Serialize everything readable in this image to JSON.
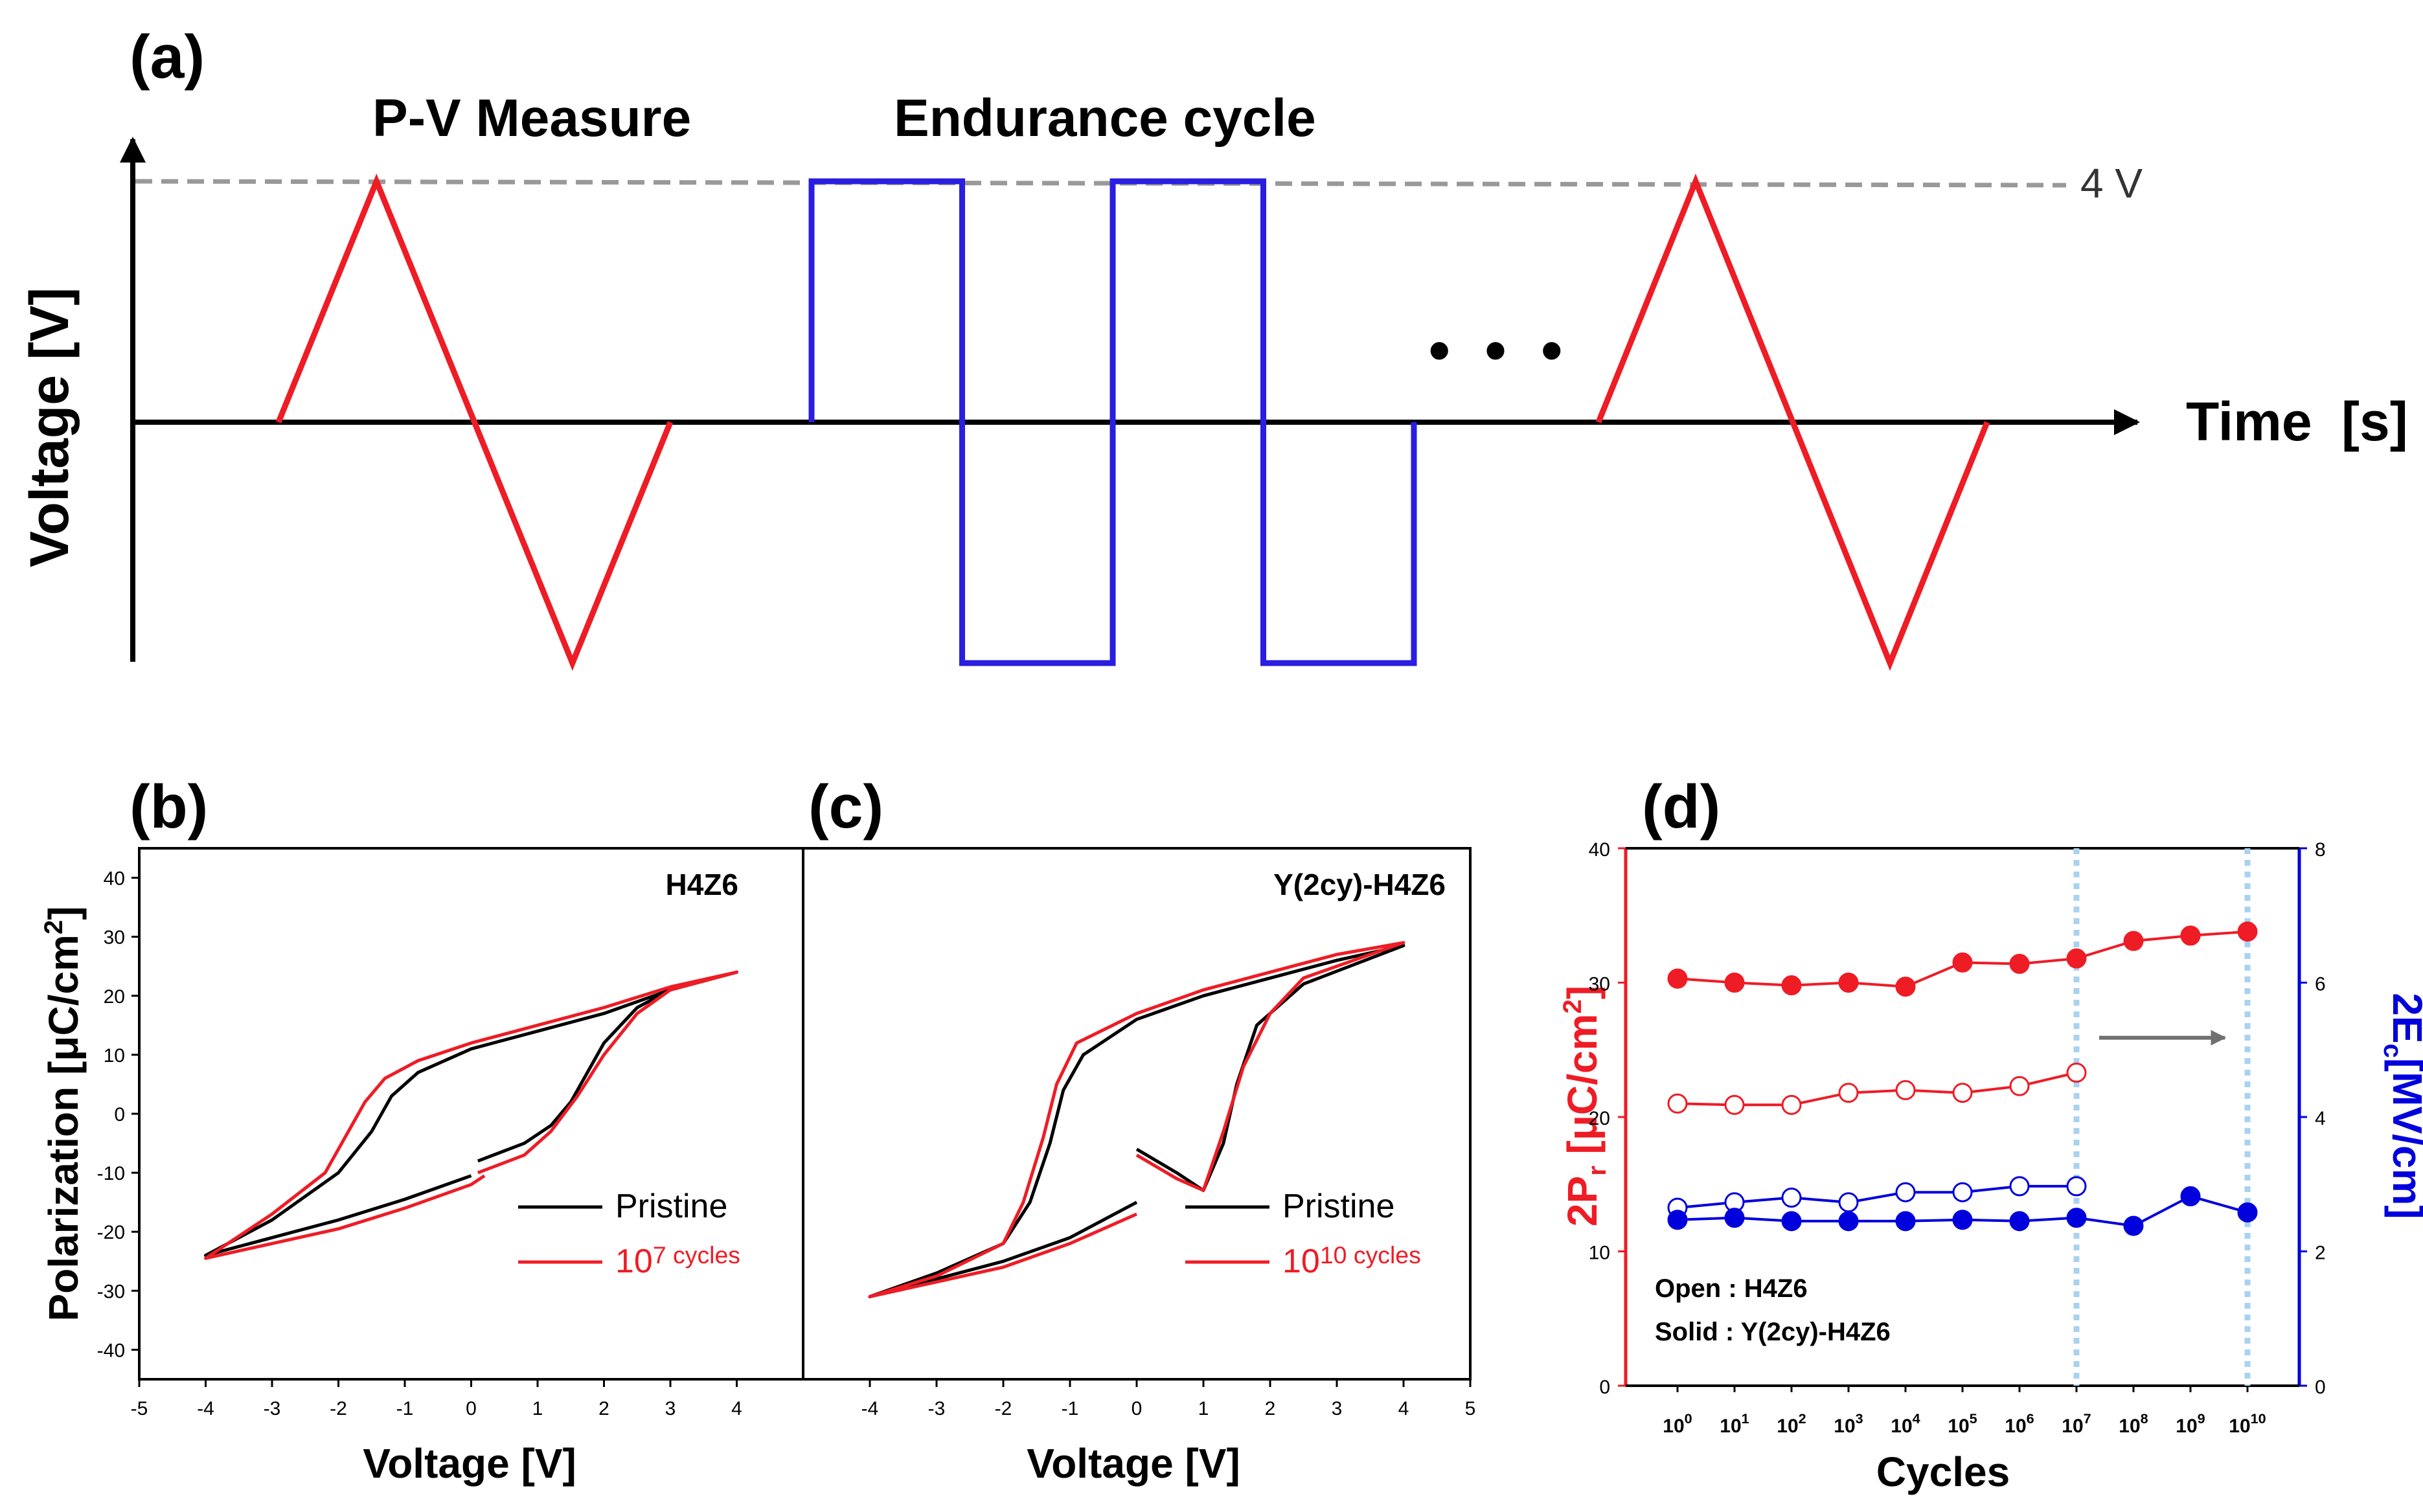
{
  "colors": {
    "red": "#ee1c25",
    "blue": "#2a1ee0",
    "dblue": "#0000dd",
    "black": "#000000",
    "gray": "#999999",
    "lightblue": "#a9d2f0"
  },
  "panel_a": {
    "label": "(a)",
    "pv_title": "P-V Measure",
    "endurance_title": "Endurance cycle",
    "ylabel": "Voltage [V]",
    "xlabel_main": "Time",
    "xlabel_unit": "[s]",
    "level_label": "4 V",
    "ellipsis": "• • •"
  },
  "panel_b": {
    "label": "(b)",
    "sample": "H4Z6"
  },
  "panel_c": {
    "label": "(c)",
    "sample": "Y(2cy)-H4Z6"
  },
  "panel_d": {
    "label": "(d)",
    "note_open": "Open : H4Z6",
    "note_solid": "Solid : Y(2cy)-H4Z6"
  },
  "chart_data": [
    {
      "id": "a",
      "type": "line",
      "title": "Voltage waveform: P-V Measure and Endurance cycle",
      "xlabel": "Time [s]",
      "ylabel": "Voltage [V]",
      "amplitude_label": "4 V",
      "series": [
        {
          "name": "P-V triangular pulse (start)",
          "color": "red",
          "t": [
            0,
            1,
            2,
            3,
            4
          ],
          "v": [
            0,
            4,
            0,
            -4,
            0
          ]
        },
        {
          "name": "Endurance bipolar square pulses",
          "color": "blue",
          "t": [
            0,
            0,
            1,
            1,
            2,
            2,
            3,
            3,
            4,
            4
          ],
          "v": [
            0,
            4,
            4,
            -4,
            -4,
            4,
            4,
            -4,
            -4,
            0
          ]
        },
        {
          "name": "P-V triangular pulse (end)",
          "color": "red",
          "t": [
            0,
            1,
            2,
            3,
            4
          ],
          "v": [
            0,
            4,
            0,
            -4,
            0
          ]
        }
      ]
    },
    {
      "id": "b",
      "type": "line",
      "title": "H4Z6",
      "xlabel": "Voltage [V]",
      "ylabel": "Polarization [μC/cm²]",
      "xlim": [
        -5,
        5
      ],
      "ylim": [
        -45,
        45
      ],
      "xticks": [
        "-5",
        "-4",
        "-3",
        "-2",
        "-1",
        "0",
        "1",
        "2",
        "3",
        "4"
      ],
      "yticks": [
        "40",
        "30",
        "20",
        "10",
        "0",
        "-10",
        "-20",
        "-30",
        "-40"
      ],
      "series": [
        {
          "name": "Pristine",
          "color": "black",
          "x": [
            0.1,
            0.8,
            1.2,
            1.5,
            2.0,
            2.5,
            3.0,
            4.0,
            3.0,
            2.0,
            1.0,
            0.0,
            -0.8,
            -1.2,
            -1.5,
            -2.0,
            -3.0,
            -4.0,
            -3.0,
            -2.0,
            -1.0,
            0.0
          ],
          "y": [
            -8,
            -5,
            -2,
            2,
            12,
            18,
            21,
            24,
            21,
            17,
            14,
            11,
            7,
            3,
            -3,
            -10,
            -18,
            -24,
            -21,
            -18,
            -14.5,
            -10.5
          ]
        },
        {
          "name": "10^7 cycles",
          "color": "red",
          "x": [
            0.1,
            0.8,
            1.2,
            1.6,
            2.0,
            2.5,
            3.0,
            4.0,
            3.0,
            2.0,
            1.0,
            0.0,
            -0.8,
            -1.3,
            -1.6,
            -1.9,
            -2.2,
            -3.0,
            -4.0,
            -3.0,
            -2.0,
            -1.0,
            0.0,
            0.2
          ],
          "y": [
            -10,
            -7,
            -3,
            3,
            10,
            17,
            21,
            24,
            21.5,
            18,
            15,
            12,
            9,
            6,
            2,
            -4,
            -10,
            -17,
            -24.5,
            -22,
            -19.5,
            -16,
            -12,
            -10.5
          ]
        }
      ],
      "legend": [
        "Pristine",
        "10^7 cycles"
      ],
      "legend_position": "bottom-right"
    },
    {
      "id": "c",
      "type": "line",
      "title": "Y(2cy)-H4Z6",
      "xlabel": "Voltage [V]",
      "xlim": [
        -5,
        5
      ],
      "ylim": [
        -45,
        45
      ],
      "xticks": [
        "-4",
        "-3",
        "-2",
        "-1",
        "0",
        "1",
        "2",
        "3",
        "4",
        "5"
      ],
      "series": [
        {
          "name": "Pristine",
          "color": "black",
          "x": [
            0.0,
            0.6,
            1.0,
            1.3,
            1.5,
            1.8,
            2.5,
            4.0,
            3.0,
            2.0,
            1.0,
            0.0,
            -0.8,
            -1.1,
            -1.3,
            -1.6,
            -2.0,
            -3.0,
            -4.0,
            -3.0,
            -2.0,
            -1.0,
            0.0
          ],
          "y": [
            -6,
            -10,
            -13,
            -5,
            5,
            15,
            22,
            28.5,
            26,
            23,
            20,
            16,
            10,
            4,
            -5,
            -15,
            -22,
            -27,
            -31,
            -28,
            -25,
            -21,
            -15
          ]
        },
        {
          "name": "10^10 cycles",
          "color": "red",
          "x": [
            0.0,
            0.6,
            1.0,
            1.3,
            1.6,
            2.0,
            2.5,
            4.0,
            3.0,
            2.0,
            1.0,
            0.0,
            -0.9,
            -1.2,
            -1.4,
            -1.7,
            -2.0,
            -3.0,
            -4.0,
            -3.0,
            -2.0,
            -1.0,
            0.0
          ],
          "y": [
            -7,
            -11,
            -13,
            -3,
            8,
            17,
            23,
            29,
            27,
            24,
            21,
            17,
            12,
            5,
            -4,
            -15,
            -22,
            -27.5,
            -31,
            -28.5,
            -26,
            -22,
            -17
          ]
        }
      ],
      "legend": [
        "Pristine",
        "10^10 cycles"
      ],
      "legend_position": "bottom-right"
    },
    {
      "id": "d",
      "type": "scatter",
      "xlabel": "Cycles",
      "ylabel_left": "2Pr [μC/cm²]",
      "ylabel_right": "2Ec[MV/cm]",
      "ylim_left": [
        0,
        40
      ],
      "ylim_right": [
        0,
        8
      ],
      "yticks_left": [
        "0",
        "10",
        "20",
        "30",
        "40"
      ],
      "yticks_right": [
        "0",
        "2",
        "4",
        "6",
        "8"
      ],
      "categories": [
        "10^0",
        "10^1",
        "10^2",
        "10^3",
        "10^4",
        "10^5",
        "10^6",
        "10^7",
        "10^8",
        "10^9",
        "10^10"
      ],
      "series": [
        {
          "name": "2Pr Y(2cy)-H4Z6 (solid)",
          "axis": "left",
          "color": "red",
          "marker": "filled",
          "values": [
            30.3,
            30.0,
            29.8,
            30.0,
            29.7,
            31.5,
            31.4,
            31.8,
            33.1,
            33.5,
            33.8
          ]
        },
        {
          "name": "2Pr H4Z6 (open)",
          "axis": "left",
          "color": "red",
          "marker": "open",
          "values": [
            21.0,
            20.9,
            20.9,
            21.8,
            22.0,
            21.8,
            22.3,
            23.3
          ]
        },
        {
          "name": "2Ec H4Z6 (open)",
          "axis": "right",
          "color": "blue",
          "marker": "open",
          "values": [
            2.65,
            2.73,
            2.8,
            2.73,
            2.88,
            2.88,
            2.97,
            2.97
          ]
        },
        {
          "name": "2Ec Y(2cy)-H4Z6 (solid)",
          "axis": "right",
          "color": "blue",
          "marker": "filled",
          "values": [
            2.47,
            2.5,
            2.45,
            2.45,
            2.45,
            2.47,
            2.45,
            2.5,
            2.38,
            2.82,
            2.58
          ]
        }
      ],
      "annotations": [
        "Open : H4Z6",
        "Solid : Y(2cy)-H4Z6"
      ]
    }
  ]
}
